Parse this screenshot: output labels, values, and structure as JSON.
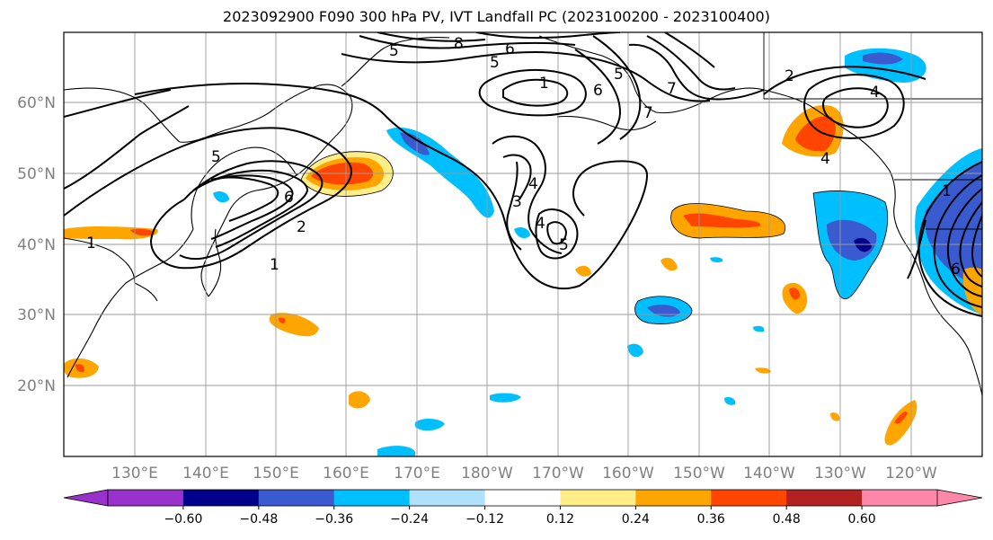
{
  "title": "2023092900 F090 300 hPa PV, IVT Landfall PC (2023100200 - 2023100400)",
  "map": {
    "lat_labels": [
      "60°N",
      "50°N",
      "40°N",
      "30°N",
      "20°N"
    ],
    "lon_labels": [
      "130°E",
      "140°E",
      "150°E",
      "160°E",
      "170°E",
      "180°W",
      "170°W",
      "160°W",
      "150°W",
      "140°W",
      "130°W",
      "120°W"
    ],
    "grid": true
  },
  "colorbar": {
    "colors": [
      "#9932cc",
      "#00008b",
      "#3a5bcf",
      "#00bfff",
      "#afe1fa",
      "#ffffff",
      "#ffee88",
      "#ffa500",
      "#ff4500",
      "#b22222",
      "#ff88aa"
    ],
    "labels": [
      "−0.60",
      "−0.48",
      "−0.36",
      "−0.24",
      "−0.12",
      "0.12",
      "0.24",
      "0.36",
      "0.48",
      "0.60"
    ]
  },
  "contour_labels": [
    "5",
    "8",
    "6",
    "5",
    "1",
    "5",
    "6",
    "7",
    "7",
    "2",
    "4",
    "4",
    "3",
    "4",
    "4",
    "5",
    "6",
    "2",
    "1",
    "1",
    "1",
    "6",
    "5"
  ]
}
